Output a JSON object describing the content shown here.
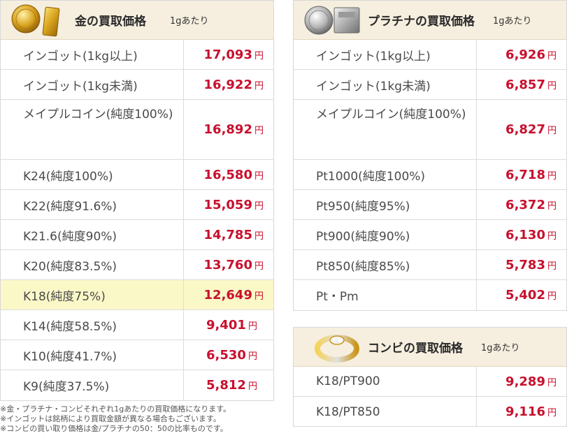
{
  "gold": {
    "title": "金の買取価格",
    "unit": "1gあたり",
    "rows": [
      {
        "name": "インゴット(1kg以上)",
        "price": "17,093",
        "yen": "円"
      },
      {
        "name": "インゴット(1kg未満)",
        "price": "16,922",
        "yen": "円"
      },
      {
        "name": "メイプルコイン(純度100%)",
        "price": "16,892",
        "yen": "円"
      },
      {
        "name": "K24(純度100%)",
        "price": "16,580",
        "yen": "円"
      },
      {
        "name": "K22(純度91.6%)",
        "price": "15,059",
        "yen": "円"
      },
      {
        "name": "K21.6(純度90%)",
        "price": "14,785",
        "yen": "円"
      },
      {
        "name": "K20(純度83.5%)",
        "price": "13,760",
        "yen": "円"
      },
      {
        "name": "K18(純度75%)",
        "price": "12,649",
        "yen": "円"
      },
      {
        "name": "K14(純度58.5%)",
        "price": "9,401",
        "yen": "円"
      },
      {
        "name": "K10(純度41.7%)",
        "price": "6,530",
        "yen": "円"
      },
      {
        "name": "K9(純度37.5%)",
        "price": "5,812",
        "yen": "円"
      }
    ]
  },
  "platinum": {
    "title": "プラチナの買取価格",
    "unit": "1gあたり",
    "rows": [
      {
        "name": "インゴット(1kg以上)",
        "price": "6,926",
        "yen": "円"
      },
      {
        "name": "インゴット(1kg未満)",
        "price": "6,857",
        "yen": "円"
      },
      {
        "name": "メイプルコイン(純度100%)",
        "price": "6,827",
        "yen": "円"
      },
      {
        "name": "Pt1000(純度100%)",
        "price": "6,718",
        "yen": "円"
      },
      {
        "name": "Pt950(純度95%)",
        "price": "6,372",
        "yen": "円"
      },
      {
        "name": "Pt900(純度90%)",
        "price": "6,130",
        "yen": "円"
      },
      {
        "name": "Pt850(純度85%)",
        "price": "5,783",
        "yen": "円"
      },
      {
        "name": "Pt・Pm",
        "price": "5,402",
        "yen": "円"
      }
    ]
  },
  "combi": {
    "title": "コンビの買取価格",
    "unit": "1gあたり",
    "rows": [
      {
        "name": "K18/PT900",
        "price": "9,289",
        "yen": "円"
      },
      {
        "name": "K18/PT850",
        "price": "9,116",
        "yen": "円"
      }
    ]
  },
  "notes": [
    "※金・プラチナ・コンビそれぞれ1gあたりの買取価格になります。",
    "※インゴットは銘柄により買取金額が異なる場合もございます。",
    "※コンビの買い取り価格は金/プラチナの50：50の比率ものです。"
  ],
  "colors": {
    "price": "#c8102e",
    "header_bg": "#f6efdf",
    "highlight": "#fbf8c8"
  },
  "icons": {
    "gold": "gold-coin-bar-icon",
    "platinum": "platinum-coin-bar-icon",
    "combi": "combi-ring-icon"
  }
}
